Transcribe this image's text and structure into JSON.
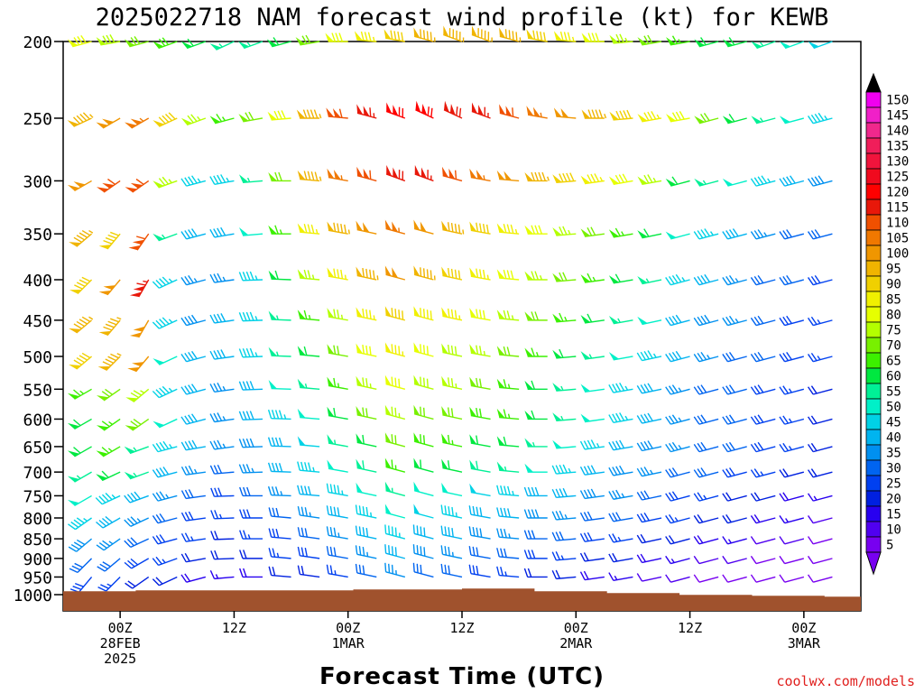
{
  "title": "2025022718 NAM forecast wind profile (kt) for KEWB",
  "xlabel": "Forecast Time (UTC)",
  "credit": "coolwx.com/models",
  "x_ticks": [
    {
      "hour": 6,
      "lines": [
        "00Z",
        "28FEB",
        "2025"
      ]
    },
    {
      "hour": 18,
      "lines": [
        "12Z"
      ]
    },
    {
      "hour": 30,
      "lines": [
        "00Z",
        "1MAR"
      ]
    },
    {
      "hour": 42,
      "lines": [
        "12Z"
      ]
    },
    {
      "hour": 54,
      "lines": [
        "00Z",
        "2MAR"
      ]
    },
    {
      "hour": 66,
      "lines": [
        "12Z"
      ]
    },
    {
      "hour": 78,
      "lines": [
        "00Z",
        "3MAR"
      ]
    }
  ],
  "y_ticks": [
    200,
    250,
    300,
    350,
    400,
    450,
    500,
    550,
    600,
    650,
    700,
    750,
    800,
    850,
    900,
    950,
    1000
  ],
  "colorbar": {
    "labels": [
      150,
      145,
      140,
      135,
      130,
      125,
      120,
      115,
      110,
      105,
      100,
      95,
      90,
      85,
      80,
      75,
      70,
      65,
      60,
      55,
      50,
      45,
      40,
      35,
      30,
      25,
      20,
      15,
      10,
      5
    ],
    "colors": [
      "#f000f0",
      "#f020c8",
      "#f0288c",
      "#f01e5a",
      "#f0143c",
      "#f00a1e",
      "#ff0000",
      "#e8180a",
      "#f05000",
      "#f07800",
      "#f09600",
      "#f0b400",
      "#f0d000",
      "#f0f000",
      "#e6ff00",
      "#b4ff00",
      "#78f000",
      "#3cf000",
      "#00e840",
      "#00f096",
      "#00f0c8",
      "#00d2e6",
      "#00b4f0",
      "#0090f0",
      "#0064f0",
      "#0040f0",
      "#0020e0",
      "#2800f0",
      "#5000f0",
      "#7800f0"
    ]
  },
  "chart_data": {
    "type": "wind_barbs",
    "title": "2025022718 NAM forecast wind profile (kt) for KEWB",
    "xlabel": "Forecast Time (UTC)",
    "ylabel": "",
    "x_range_hours": [
      0,
      84
    ],
    "y_range_hPa": [
      200,
      1000
    ],
    "y_scale": "log-pressure",
    "surface_pressure_hPa": 990,
    "wind_speed_units": "kt",
    "levels_hPa": [
      200,
      250,
      300,
      350,
      400,
      450,
      500,
      550,
      600,
      650,
      700,
      750,
      800,
      850,
      900,
      950
    ],
    "times_hours": [
      0,
      3,
      6,
      9,
      12,
      15,
      18,
      21,
      24,
      27,
      30,
      33,
      36,
      39,
      42,
      45,
      48,
      51,
      54,
      57,
      60,
      63,
      66,
      69,
      72,
      75,
      78,
      81,
      84
    ],
    "wind_speed_kt": {
      "200": [
        82,
        80,
        78,
        72,
        68,
        62,
        57,
        55,
        60,
        70,
        80,
        85,
        92,
        95,
        97,
        95,
        95,
        90,
        85,
        80,
        75,
        70,
        65,
        62,
        60,
        55,
        50,
        48,
        45
      ],
      "250": [
        90,
        95,
        100,
        105,
        92,
        75,
        65,
        70,
        82,
        95,
        110,
        115,
        120,
        122,
        118,
        115,
        110,
        105,
        100,
        95,
        90,
        85,
        80,
        70,
        60,
        55,
        50,
        45,
        42
      ],
      "300": [
        95,
        100,
        112,
        110,
        75,
        45,
        45,
        55,
        72,
        95,
        105,
        110,
        118,
        115,
        110,
        105,
        100,
        95,
        90,
        85,
        80,
        75,
        60,
        55,
        50,
        45,
        40,
        38,
        35
      ],
      "350": [
        90,
        95,
        90,
        112,
        55,
        40,
        40,
        50,
        65,
        85,
        95,
        100,
        105,
        100,
        95,
        90,
        85,
        80,
        75,
        70,
        65,
        60,
        50,
        45,
        40,
        35,
        32,
        30,
        28
      ],
      "400": [
        85,
        90,
        100,
        115,
        45,
        35,
        35,
        45,
        60,
        75,
        85,
        95,
        100,
        95,
        90,
        85,
        80,
        75,
        70,
        65,
        60,
        55,
        45,
        40,
        35,
        32,
        30,
        28,
        25
      ],
      "450": [
        90,
        95,
        95,
        100,
        45,
        38,
        40,
        45,
        55,
        65,
        75,
        85,
        90,
        88,
        85,
        80,
        75,
        70,
        65,
        60,
        55,
        50,
        42,
        38,
        35,
        30,
        28,
        25,
        22
      ],
      "500": [
        85,
        90,
        95,
        100,
        50,
        40,
        40,
        45,
        55,
        60,
        70,
        80,
        85,
        82,
        78,
        75,
        70,
        65,
        60,
        55,
        50,
        45,
        40,
        35,
        32,
        30,
        28,
        25,
        22
      ],
      "550": [
        60,
        65,
        70,
        75,
        45,
        40,
        35,
        40,
        50,
        55,
        65,
        75,
        80,
        78,
        75,
        70,
        65,
        60,
        55,
        50,
        45,
        40,
        35,
        32,
        30,
        28,
        25,
        22,
        20
      ],
      "600": [
        55,
        60,
        65,
        70,
        50,
        40,
        35,
        40,
        45,
        50,
        60,
        70,
        75,
        72,
        70,
        68,
        65,
        60,
        55,
        50,
        45,
        40,
        35,
        32,
        30,
        28,
        25,
        22,
        20
      ],
      "650": [
        55,
        60,
        65,
        55,
        45,
        40,
        35,
        38,
        42,
        48,
        55,
        62,
        70,
        68,
        65,
        62,
        60,
        55,
        50,
        45,
        42,
        38,
        35,
        32,
        30,
        28,
        25,
        22,
        20
      ],
      "700": [
        50,
        55,
        60,
        55,
        40,
        35,
        30,
        35,
        40,
        45,
        50,
        58,
        65,
        62,
        60,
        58,
        55,
        50,
        45,
        42,
        38,
        35,
        32,
        30,
        28,
        25,
        22,
        20,
        18
      ],
      "750": [
        55,
        50,
        45,
        40,
        35,
        30,
        28,
        30,
        35,
        40,
        45,
        50,
        55,
        52,
        50,
        48,
        45,
        42,
        40,
        38,
        35,
        32,
        28,
        25,
        22,
        20,
        18,
        15,
        12
      ],
      "800": [
        50,
        45,
        40,
        35,
        30,
        28,
        25,
        28,
        30,
        35,
        40,
        45,
        50,
        48,
        45,
        42,
        40,
        38,
        35,
        32,
        30,
        28,
        25,
        22,
        20,
        18,
        15,
        12,
        10
      ],
      "850": [
        40,
        38,
        35,
        30,
        28,
        25,
        22,
        25,
        28,
        30,
        35,
        40,
        45,
        42,
        40,
        38,
        35,
        32,
        30,
        28,
        25,
        22,
        20,
        18,
        15,
        12,
        10,
        8,
        8
      ],
      "900": [
        35,
        32,
        30,
        28,
        25,
        22,
        20,
        22,
        25,
        28,
        30,
        35,
        40,
        38,
        35,
        32,
        30,
        28,
        25,
        22,
        20,
        18,
        15,
        12,
        10,
        8,
        8,
        8,
        8
      ],
      "950": [
        30,
        28,
        25,
        22,
        20,
        18,
        15,
        18,
        20,
        22,
        25,
        30,
        35,
        32,
        30,
        28,
        25,
        22,
        20,
        18,
        15,
        12,
        10,
        8,
        8,
        8,
        8,
        8,
        8
      ]
    },
    "wind_direction_deg": {
      "200": [
        250,
        255,
        260,
        255,
        250,
        250,
        245,
        250,
        255,
        260,
        270,
        275,
        280,
        285,
        290,
        290,
        285,
        280,
        275,
        270,
        265,
        260,
        260,
        255,
        255,
        250,
        250,
        250,
        250
      ],
      "250": [
        240,
        245,
        240,
        240,
        245,
        250,
        255,
        260,
        265,
        270,
        275,
        285,
        290,
        295,
        295,
        290,
        285,
        280,
        275,
        270,
        265,
        260,
        260,
        255,
        255,
        255,
        255,
        255,
        255
      ],
      "300": [
        240,
        240,
        235,
        235,
        250,
        255,
        260,
        265,
        270,
        275,
        280,
        285,
        290,
        290,
        285,
        280,
        275,
        270,
        265,
        262,
        260,
        260,
        255,
        255,
        255,
        255,
        255,
        255,
        255
      ],
      "350": [
        235,
        230,
        220,
        215,
        250,
        255,
        260,
        265,
        270,
        275,
        280,
        282,
        285,
        285,
        282,
        280,
        275,
        270,
        265,
        262,
        260,
        258,
        255,
        255,
        255,
        255,
        255,
        255,
        255
      ],
      "400": [
        230,
        225,
        220,
        210,
        245,
        255,
        262,
        268,
        272,
        275,
        280,
        282,
        285,
        285,
        282,
        280,
        275,
        270,
        265,
        262,
        260,
        258,
        255,
        255,
        255,
        255,
        255,
        255,
        255
      ],
      "450": [
        230,
        230,
        220,
        210,
        245,
        255,
        262,
        268,
        272,
        275,
        280,
        282,
        285,
        285,
        282,
        280,
        275,
        270,
        265,
        262,
        260,
        258,
        255,
        255,
        255,
        255,
        255,
        255,
        255
      ],
      "500": [
        230,
        230,
        225,
        220,
        245,
        255,
        262,
        268,
        272,
        275,
        280,
        282,
        285,
        285,
        282,
        280,
        275,
        270,
        265,
        262,
        260,
        258,
        255,
        255,
        255,
        255,
        255,
        255,
        255
      ],
      "550": [
        240,
        240,
        235,
        230,
        245,
        255,
        262,
        268,
        272,
        275,
        280,
        282,
        285,
        285,
        282,
        280,
        275,
        270,
        265,
        262,
        260,
        258,
        255,
        255,
        255,
        255,
        255,
        255,
        255
      ],
      "600": [
        240,
        240,
        235,
        235,
        245,
        255,
        262,
        268,
        272,
        275,
        280,
        282,
        285,
        285,
        282,
        280,
        275,
        270,
        265,
        262,
        260,
        258,
        255,
        255,
        255,
        255,
        255,
        255,
        255
      ],
      "650": [
        240,
        240,
        240,
        250,
        255,
        260,
        262,
        268,
        272,
        275,
        280,
        282,
        285,
        285,
        282,
        280,
        275,
        270,
        265,
        262,
        260,
        258,
        255,
        255,
        255,
        255,
        255,
        255,
        255
      ],
      "700": [
        240,
        240,
        245,
        250,
        255,
        262,
        265,
        268,
        272,
        275,
        280,
        282,
        285,
        285,
        282,
        280,
        275,
        270,
        265,
        262,
        260,
        258,
        255,
        255,
        255,
        255,
        255,
        255,
        255
      ],
      "750": [
        235,
        240,
        245,
        250,
        255,
        262,
        268,
        270,
        272,
        275,
        280,
        282,
        285,
        285,
        282,
        280,
        275,
        270,
        265,
        262,
        260,
        258,
        255,
        255,
        255,
        255,
        255,
        255,
        255
      ],
      "800": [
        230,
        235,
        240,
        245,
        255,
        262,
        268,
        270,
        275,
        278,
        280,
        282,
        285,
        285,
        282,
        280,
        275,
        270,
        265,
        262,
        260,
        258,
        255,
        255,
        255,
        255,
        255,
        255,
        255
      ],
      "850": [
        225,
        230,
        235,
        245,
        255,
        262,
        268,
        270,
        275,
        278,
        280,
        282,
        285,
        285,
        282,
        280,
        275,
        270,
        265,
        262,
        260,
        258,
        255,
        255,
        255,
        255,
        255,
        255,
        255
      ],
      "900": [
        220,
        225,
        230,
        240,
        250,
        260,
        268,
        270,
        275,
        278,
        280,
        282,
        285,
        285,
        282,
        280,
        275,
        270,
        265,
        262,
        260,
        258,
        255,
        255,
        255,
        255,
        255,
        255,
        255
      ],
      "950": [
        220,
        220,
        225,
        235,
        245,
        255,
        265,
        270,
        275,
        278,
        280,
        282,
        285,
        285,
        282,
        280,
        275,
        270,
        265,
        262,
        260,
        258,
        255,
        255,
        255,
        255,
        255,
        255,
        255
      ]
    }
  }
}
